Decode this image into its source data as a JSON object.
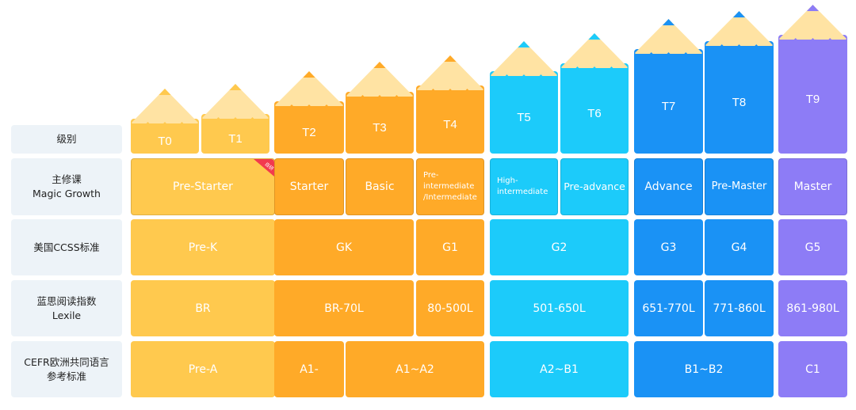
{
  "labels": {
    "level": "级别",
    "course": "主修课\nMagic Growth",
    "ccss": "美国CCSS标准",
    "lexile": "蓝思阅读指数\nLexile",
    "cefr": "CEFR欧洲共同语言\n参考标准"
  },
  "badge": "自研",
  "levels": [
    "T0",
    "T1",
    "T2",
    "T3",
    "T4",
    "T5",
    "T6",
    "T7",
    "T8",
    "T9"
  ],
  "courses": {
    "pre_starter": "Pre-Starter",
    "starter": "Starter",
    "basic": "Basic",
    "pre_intermediate": "Pre-\nintermediate\n/Intermediate",
    "high_intermediate": "High-\nintermediate",
    "pre_advance": "Pre-advance",
    "advance": "Advance",
    "pre_master": "Pre-Master",
    "master": "Master"
  },
  "ccss": {
    "prek": "Pre-K",
    "gk": "GK",
    "g1": "G1",
    "g2": "G2",
    "g3": "G3",
    "g4": "G4",
    "g5": "G5"
  },
  "lexile": {
    "br": "BR",
    "br70": "BR-70L",
    "l80": "80-500L",
    "l501": "501-650L",
    "l651": "651-770L",
    "l771": "771-860L",
    "l861": "861-980L"
  },
  "cefr": {
    "prea": "Pre-A",
    "a1": "A1-",
    "a1a2": "A1~A2",
    "a2b1": "A2~B1",
    "b1b2": "B1~B2",
    "c1": "C1"
  },
  "colors": {
    "yellow": "#ffc94e",
    "orange": "#ffaa28",
    "cyan": "#1ccbfa",
    "blue": "#1a92f5",
    "purple": "#8d7cf6",
    "wood": "#ffe3a3",
    "label_bg": "#edf3f8"
  }
}
